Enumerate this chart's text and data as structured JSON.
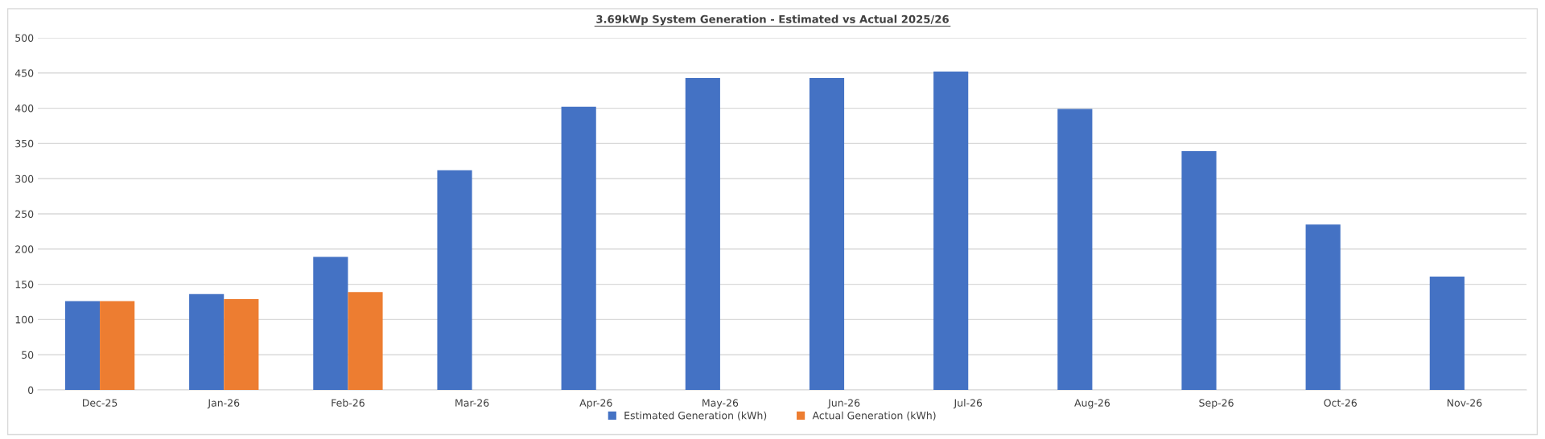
{
  "chart_data": {
    "type": "bar",
    "title": "3.69kWp System Generation - Estimated vs Actual 2025/26",
    "categories": [
      "Dec-25",
      "Jan-26",
      "Feb-26",
      "Mar-26",
      "Apr-26",
      "May-26",
      "Jun-26",
      "Jul-26",
      "Aug-26",
      "Sep-26",
      "Oct-26",
      "Nov-26"
    ],
    "series": [
      {
        "name": "Estimated Generation (kWh)",
        "color": "#4472c4",
        "values": [
          126,
          136,
          189,
          312,
          402,
          443,
          443,
          452,
          399,
          339,
          235,
          161
        ]
      },
      {
        "name": "Actual Generation (kWh)",
        "color": "#ed7d31",
        "values": [
          126,
          129,
          139,
          null,
          null,
          null,
          null,
          null,
          null,
          null,
          null,
          null
        ]
      }
    ],
    "ylim": [
      0,
      500
    ],
    "yticks": [
      0,
      50,
      100,
      150,
      200,
      250,
      300,
      350,
      400,
      450,
      500
    ],
    "grid": "y",
    "legend": "bottom"
  }
}
